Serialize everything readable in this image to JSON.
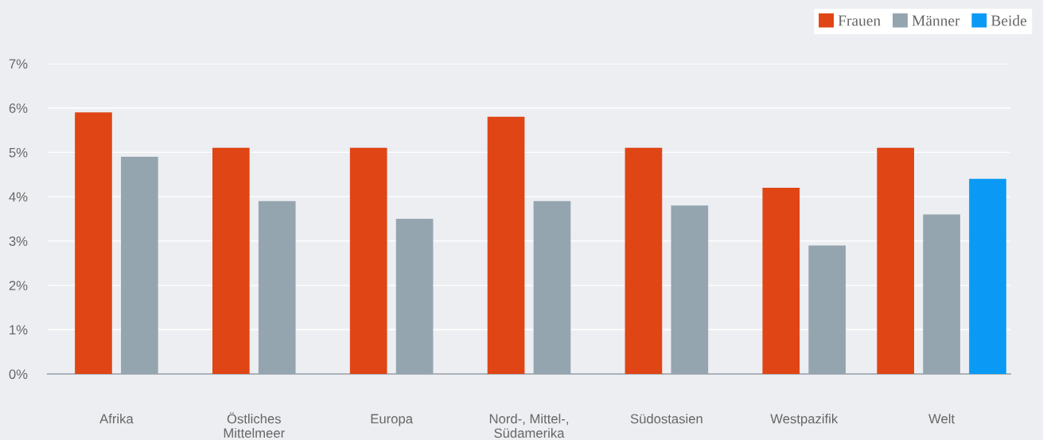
{
  "chart_data": {
    "type": "bar",
    "categories": [
      "Afrika",
      "Östliches\nMittelmeer",
      "Europa",
      "Nord-, Mittel-,\nSüdamerika",
      "Südostasien",
      "Westpazifik",
      "Welt"
    ],
    "series": [
      {
        "name": "Frauen",
        "color": "#e04515",
        "values": [
          5.9,
          5.1,
          5.1,
          5.8,
          5.1,
          4.2,
          5.1
        ]
      },
      {
        "name": "Männer",
        "color": "#95a5b0",
        "values": [
          4.9,
          3.9,
          3.5,
          3.9,
          3.8,
          2.9,
          3.6
        ]
      },
      {
        "name": "Beide",
        "color": "#0a9af5",
        "values": [
          null,
          null,
          null,
          null,
          null,
          null,
          4.4
        ]
      }
    ],
    "ylim": [
      0,
      7
    ],
    "yticks": [
      {
        "value": 0,
        "label": "0%"
      },
      {
        "value": 1,
        "label": "1%"
      },
      {
        "value": 2,
        "label": "2%"
      },
      {
        "value": 3,
        "label": "3%"
      },
      {
        "value": 4,
        "label": "4%"
      },
      {
        "value": 5,
        "label": "5%"
      },
      {
        "value": 6,
        "label": "6%"
      },
      {
        "value": 7,
        "label": "7%"
      }
    ],
    "grid": "y",
    "legend": "top right"
  }
}
